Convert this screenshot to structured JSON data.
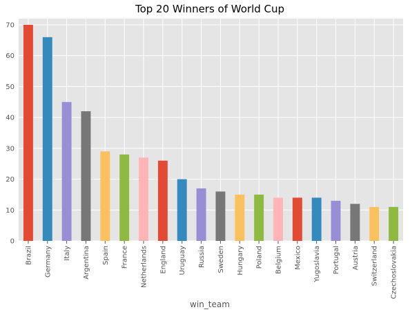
{
  "chart_data": {
    "type": "bar",
    "title": "Top 20 Winners of World Cup",
    "xlabel": "win_team",
    "ylabel": "",
    "categories": [
      "Brazil",
      "Germany",
      "Italy",
      "Argentina",
      "Spain",
      "France",
      "Netherlands",
      "England",
      "Uruguay",
      "Russia",
      "Sweden",
      "Hungary",
      "Poland",
      "Belgium",
      "Mexico",
      "Yugoslavia",
      "Portugal",
      "Austria",
      "Switzerland",
      "Czechoslovakia"
    ],
    "values": [
      70,
      66,
      45,
      42,
      29,
      28,
      27,
      26,
      20,
      17,
      16,
      15,
      15,
      14,
      14,
      14,
      13,
      12,
      11,
      11
    ],
    "ylim": [
      0,
      72
    ],
    "yticks": [
      0,
      10,
      20,
      30,
      40,
      50,
      60,
      70
    ],
    "grid": true,
    "colors": [
      "#E24A33",
      "#348ABD",
      "#988ED5",
      "#777777",
      "#FBC15E",
      "#8EBA42",
      "#FFB5B8"
    ],
    "background": "#E5E5E5"
  }
}
